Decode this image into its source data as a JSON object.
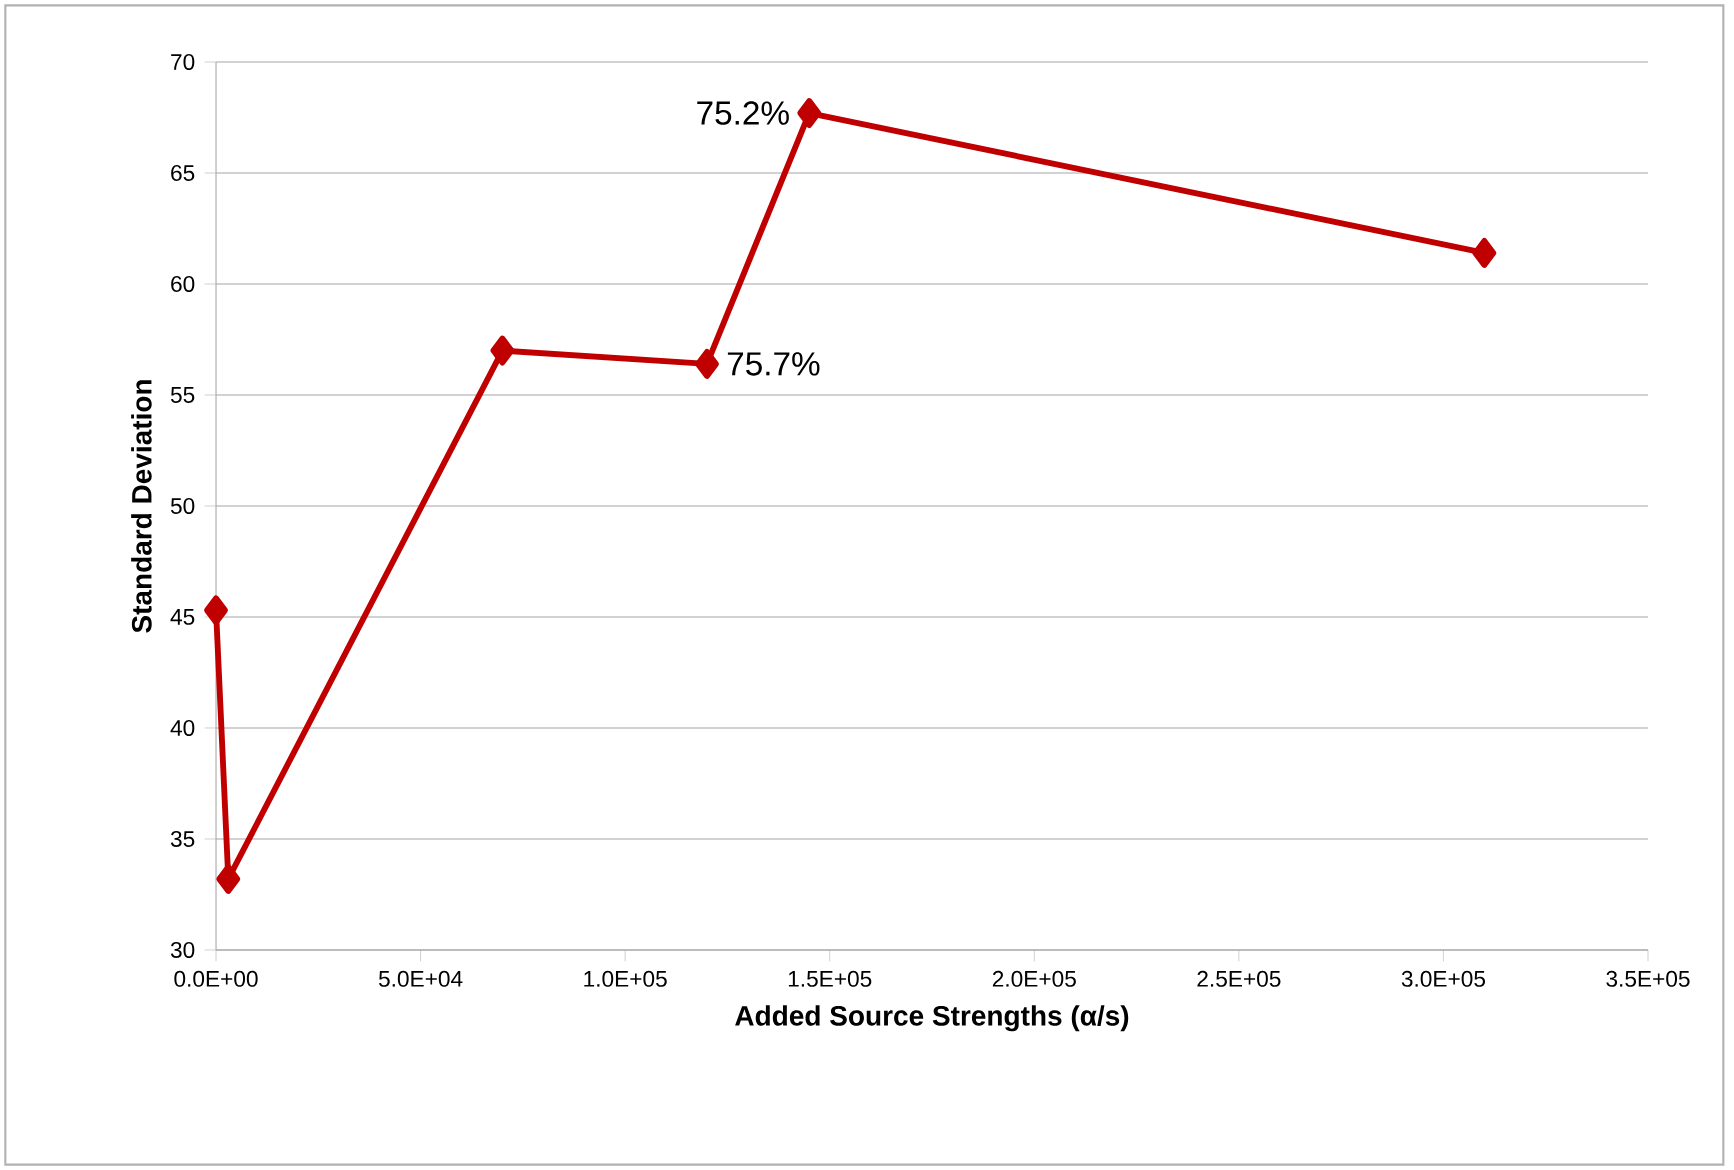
{
  "chart_data": {
    "type": "line",
    "xlabel": "Added Source Strengths (α/s)",
    "ylabel": "Standard Deviation",
    "x": [
      0,
      3000,
      70000,
      120000,
      145000,
      310000
    ],
    "series": [
      {
        "color": "#c00000",
        "values": [
          45.3,
          33.2,
          57.0,
          56.4,
          67.7,
          61.4
        ]
      }
    ],
    "xlim": [
      0,
      350000
    ],
    "xticks": [
      {
        "value": 0,
        "label": "0.0E+00"
      },
      {
        "value": 50000,
        "label": "5.0E+04"
      },
      {
        "value": 100000,
        "label": "1.0E+05"
      },
      {
        "value": 150000,
        "label": "1.5E+05"
      },
      {
        "value": 200000,
        "label": "2.0E+05"
      },
      {
        "value": 250000,
        "label": "2.5E+05"
      },
      {
        "value": 300000,
        "label": "3.0E+05"
      },
      {
        "value": 350000,
        "label": "3.5E+05"
      }
    ],
    "ylim": [
      30,
      70
    ],
    "yticks": [
      30,
      35,
      40,
      45,
      50,
      55,
      60,
      65,
      70
    ],
    "grid": "y",
    "marker": "diamond",
    "line_style": "solid",
    "annotations": [
      {
        "text": "75.2%",
        "x": 145000,
        "y": 67.7
      },
      {
        "text": "75.7%",
        "x": 120000,
        "y": 56.4
      }
    ]
  }
}
